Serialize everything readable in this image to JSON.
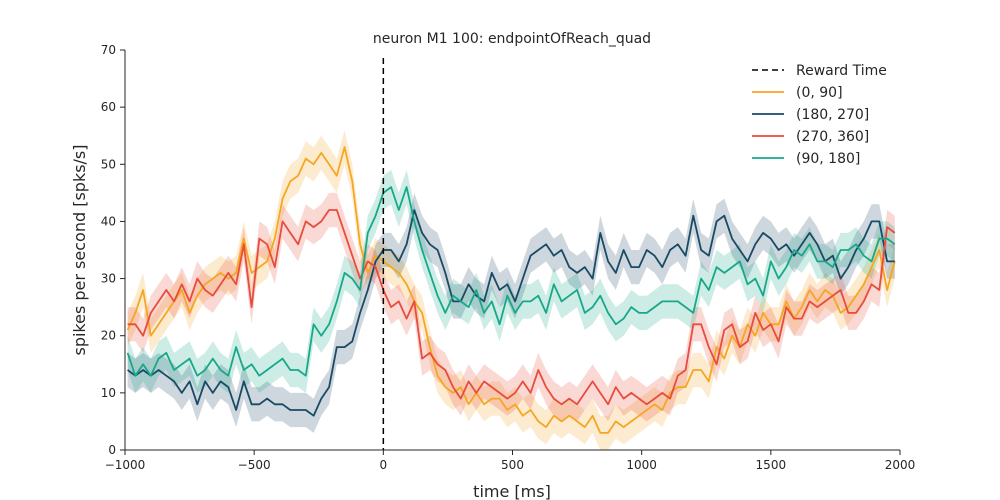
{
  "chart_data": {
    "type": "line",
    "title": "neuron M1 100: endpointOfReach_quad",
    "xlabel": "time [ms]",
    "ylabel": "spikes per second [spks/s]",
    "xlim": [
      -1000,
      2000
    ],
    "ylim": [
      0,
      70
    ],
    "xticks": [
      -1000,
      -500,
      0,
      500,
      1000,
      1500,
      2000
    ],
    "xtick_labels": [
      "−1000",
      "−500",
      "0",
      "500",
      "1000",
      "1500",
      "2000"
    ],
    "yticks": [
      0,
      10,
      20,
      30,
      40,
      50,
      60,
      70
    ],
    "ytick_labels": [
      "0",
      "10",
      "20",
      "30",
      "40",
      "50",
      "60",
      "70"
    ],
    "grid": false,
    "legend_position": "top-right",
    "vline": {
      "x": 0,
      "label": "Reward Time",
      "color": "#000000",
      "style": "dashed"
    },
    "x": [
      -990,
      -960,
      -930,
      -900,
      -870,
      -840,
      -810,
      -780,
      -750,
      -720,
      -690,
      -660,
      -630,
      -600,
      -570,
      -540,
      -510,
      -480,
      -450,
      -420,
      -390,
      -360,
      -330,
      -300,
      -270,
      -240,
      -210,
      -180,
      -150,
      -120,
      -90,
      -60,
      -30,
      0,
      30,
      60,
      90,
      120,
      150,
      180,
      210,
      240,
      270,
      300,
      330,
      360,
      390,
      420,
      450,
      480,
      510,
      540,
      570,
      600,
      630,
      660,
      690,
      720,
      750,
      780,
      810,
      840,
      870,
      900,
      930,
      960,
      990,
      1020,
      1050,
      1080,
      1110,
      1140,
      1170,
      1200,
      1230,
      1260,
      1290,
      1320,
      1350,
      1380,
      1410,
      1440,
      1470,
      1500,
      1530,
      1560,
      1590,
      1620,
      1650,
      1680,
      1710,
      1740,
      1770,
      1800,
      1830,
      1860,
      1890,
      1920,
      1950,
      1980
    ],
    "series": [
      {
        "name": "(0, 90]",
        "color": "#f5a623",
        "values": [
          21,
          24,
          28,
          20,
          22,
          24,
          26,
          28,
          24,
          27,
          29,
          30,
          31,
          30,
          31,
          37,
          31,
          32,
          33,
          37,
          44,
          47,
          48,
          51,
          50,
          52,
          50,
          48,
          53,
          47,
          36,
          31,
          34,
          33,
          32,
          31,
          29,
          26,
          24,
          18,
          13,
          11,
          10,
          11,
          8,
          10,
          8,
          9,
          9,
          7,
          8,
          6,
          7,
          5,
          4,
          6,
          5,
          6,
          5,
          4,
          6,
          3,
          3,
          5,
          4,
          5,
          6,
          7,
          8,
          7,
          10,
          11,
          11,
          14,
          14,
          12,
          18,
          16,
          20,
          18,
          22,
          20,
          24,
          22,
          22,
          26,
          23,
          25,
          28,
          26,
          28,
          27,
          24,
          25,
          27,
          29,
          32,
          35,
          28,
          33
        ]
      },
      {
        "name": "(180, 270]",
        "color": "#1a4a66",
        "values": [
          14,
          13,
          14,
          13,
          14,
          13,
          12,
          10,
          12,
          8,
          12,
          10,
          12,
          11,
          7,
          12,
          8,
          8,
          9,
          8,
          8,
          7,
          7,
          7,
          6,
          9,
          11,
          18,
          18,
          19,
          24,
          28,
          33,
          35,
          35,
          33,
          36,
          42,
          38,
          36,
          35,
          31,
          26,
          26,
          29,
          27,
          26,
          31,
          28,
          29,
          26,
          30,
          34,
          35,
          36,
          34,
          35,
          32,
          31,
          32,
          30,
          38,
          33,
          31,
          35,
          32,
          32,
          35,
          34,
          32,
          35,
          36,
          34,
          41,
          35,
          34,
          40,
          41,
          37,
          35,
          33,
          36,
          38,
          37,
          35,
          36,
          34,
          36,
          38,
          36,
          33,
          34,
          30,
          32,
          35,
          37,
          40,
          40,
          33,
          33
        ]
      },
      {
        "name": "(270, 360]",
        "color": "#e84c3d",
        "values": [
          22,
          22,
          20,
          24,
          26,
          28,
          26,
          29,
          26,
          30,
          28,
          27,
          29,
          31,
          29,
          36,
          25,
          37,
          36,
          32,
          40,
          38,
          36,
          40,
          39,
          40,
          42,
          42,
          38,
          34,
          30,
          33,
          32,
          28,
          25,
          26,
          23,
          26,
          16,
          17,
          15,
          14,
          11,
          9,
          12,
          10,
          12,
          11,
          10,
          9,
          10,
          12,
          10,
          14,
          11,
          9,
          8,
          9,
          8,
          10,
          12,
          10,
          8,
          11,
          9,
          10,
          9,
          8,
          9,
          10,
          9,
          13,
          14,
          22,
          22,
          18,
          15,
          21,
          22,
          18,
          19,
          24,
          21,
          22,
          19,
          25,
          23,
          23,
          26,
          25,
          26,
          27,
          28,
          24,
          24,
          26,
          29,
          28,
          39,
          38
        ]
      },
      {
        "name": "(90, 180]",
        "color": "#17a88a",
        "values": [
          17,
          13,
          15,
          13,
          16,
          17,
          14,
          15,
          16,
          13,
          14,
          16,
          14,
          13,
          18,
          14,
          15,
          13,
          14,
          15,
          16,
          14,
          14,
          13,
          22,
          20,
          22,
          26,
          31,
          30,
          28,
          38,
          41,
          45,
          46,
          42,
          46,
          40,
          35,
          31,
          27,
          24,
          27,
          26,
          25,
          28,
          24,
          26,
          22,
          27,
          24,
          26,
          26,
          27,
          24,
          29,
          26,
          27,
          28,
          24,
          25,
          27,
          24,
          22,
          23,
          25,
          24,
          24,
          25,
          26,
          26,
          26,
          25,
          24,
          30,
          28,
          32,
          31,
          32,
          33,
          29,
          30,
          27,
          33,
          30,
          32,
          35,
          34,
          36,
          33,
          33,
          32,
          35,
          35,
          36,
          34,
          33,
          37,
          37,
          36
        ]
      }
    ]
  }
}
